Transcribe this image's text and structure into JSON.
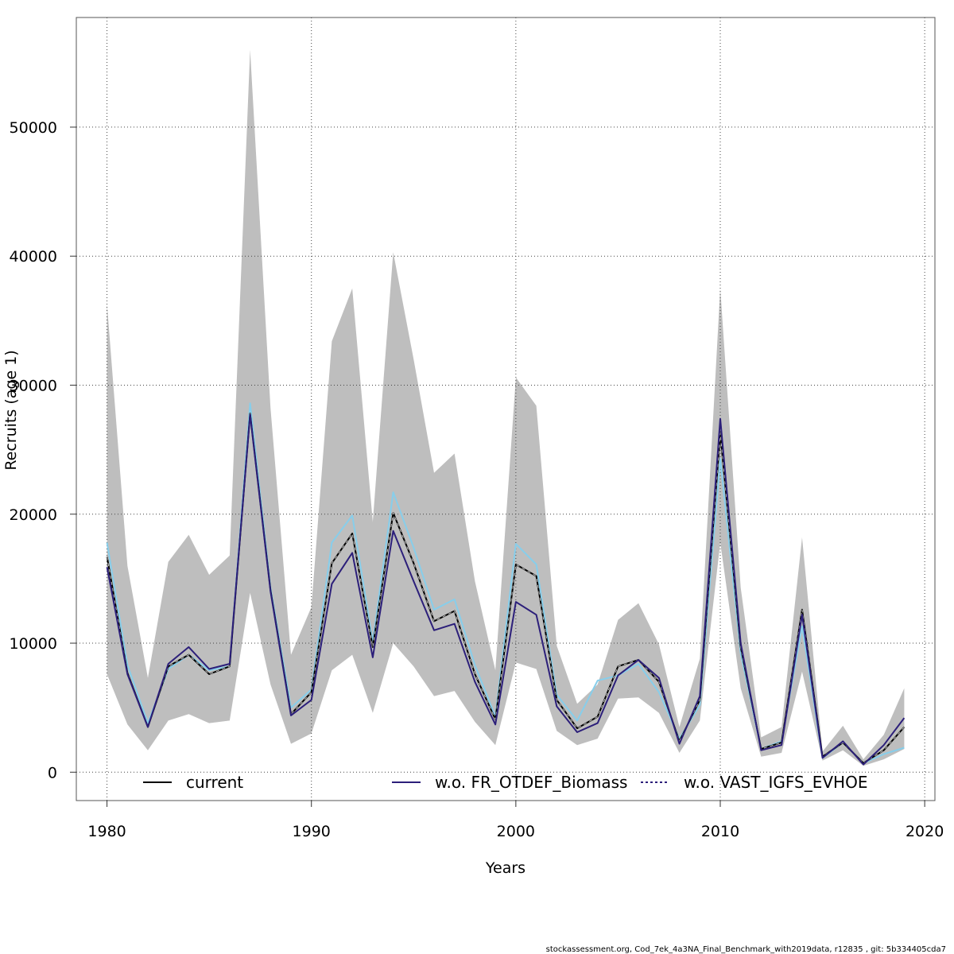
{
  "chart_data": {
    "type": "line",
    "title": "",
    "xlabel": "Years",
    "ylabel": "Recruits (age 1)",
    "xlim": [
      1978.5,
      2020.5
    ],
    "ylim": [
      -2200,
      58500
    ],
    "x_ticks": [
      1980,
      1990,
      2000,
      2010,
      2020
    ],
    "y_ticks": [
      0,
      10000,
      20000,
      30000,
      40000,
      50000
    ],
    "x_tick_labels": [
      "1980",
      "1990",
      "2000",
      "2010",
      "2020"
    ],
    "y_tick_labels": [
      "0",
      "10000",
      "20000",
      "30000",
      "40000",
      "50000"
    ],
    "grid": true,
    "legend_position": "bottom",
    "x": [
      1980,
      1981,
      1982,
      1983,
      1984,
      1985,
      1986,
      1987,
      1988,
      1989,
      1990,
      1991,
      1992,
      1993,
      1994,
      1995,
      1996,
      1997,
      1998,
      1999,
      2000,
      2001,
      2002,
      2003,
      2004,
      2005,
      2006,
      2007,
      2008,
      2009,
      2010,
      2011,
      2012,
      2013,
      2014,
      2015,
      2016,
      2017,
      2018,
      2019
    ],
    "confidence_band": {
      "lower": [
        7600,
        3700,
        1700,
        4000,
        4500,
        3800,
        4000,
        13900,
        6800,
        2200,
        3000,
        7900,
        9100,
        4600,
        10000,
        8200,
        5900,
        6300,
        3900,
        2100,
        8500,
        8000,
        3200,
        2100,
        2600,
        5700,
        5800,
        4600,
        1500,
        4000,
        17800,
        6500,
        1200,
        1500,
        7800,
        900,
        1700,
        500,
        1000,
        1800
      ],
      "upper": [
        36300,
        16000,
        7300,
        16300,
        18400,
        15300,
        16800,
        56000,
        28200,
        9100,
        12800,
        33400,
        37500,
        19400,
        40300,
        32000,
        23200,
        24700,
        14800,
        7900,
        30600,
        28400,
        9800,
        5300,
        6800,
        11800,
        13100,
        9900,
        3500,
        8800,
        37500,
        14300,
        2700,
        3500,
        18200,
        1600,
        3600,
        1000,
        2900,
        6500
      ]
    },
    "series": [
      {
        "name": "current",
        "color": "#000000",
        "style": "solid-with-dash",
        "values": [
          16700,
          7700,
          3500,
          8200,
          9100,
          7600,
          8200,
          27800,
          14100,
          4500,
          6200,
          16200,
          18500,
          9700,
          20100,
          16200,
          11700,
          12500,
          7600,
          4100,
          16100,
          15200,
          5600,
          3400,
          4300,
          8200,
          8700,
          7000,
          2400,
          5600,
          26300,
          9700,
          1800,
          2300,
          12600,
          1200,
          2300,
          700,
          1700,
          3500
        ]
      },
      {
        "name": "w.o. FR_OTDEF_Biomass",
        "color": "#2c1f7a",
        "style": "solid",
        "values": [
          15900,
          7600,
          3500,
          8400,
          9700,
          8000,
          8400,
          27700,
          14000,
          4400,
          5600,
          14600,
          17000,
          8900,
          18700,
          14800,
          11000,
          11500,
          7000,
          3700,
          13200,
          12200,
          5100,
          3100,
          3800,
          7500,
          8700,
          7300,
          2200,
          5900,
          27400,
          10000,
          1700,
          2100,
          12200,
          1100,
          2400,
          600,
          2100,
          4200
        ]
      },
      {
        "name": "w.o. VAST_IGFS_EVHOE",
        "color": "#87ceeb",
        "style": "solid",
        "values": [
          17800,
          8300,
          3800,
          8000,
          9100,
          7900,
          8200,
          28600,
          14300,
          5000,
          6400,
          17800,
          19900,
          10100,
          21700,
          17400,
          12600,
          13400,
          8300,
          4300,
          17700,
          16100,
          6000,
          4000,
          7100,
          7500,
          8400,
          6200,
          2600,
          5200,
          24300,
          9200,
          1800,
          2400,
          11300,
          1100,
          2300,
          700,
          1400,
          1900
        ]
      }
    ],
    "legend": [
      "current",
      "w.o. FR_OTDEF_Biomass",
      "w.o. VAST_IGFS_EVHOE"
    ]
  },
  "footer": {
    "text": "stockassessment.org, Cod_7ek_4a3NA_Final_Benchmark_with2019data, r12835 , git: 5b334405cda7"
  }
}
